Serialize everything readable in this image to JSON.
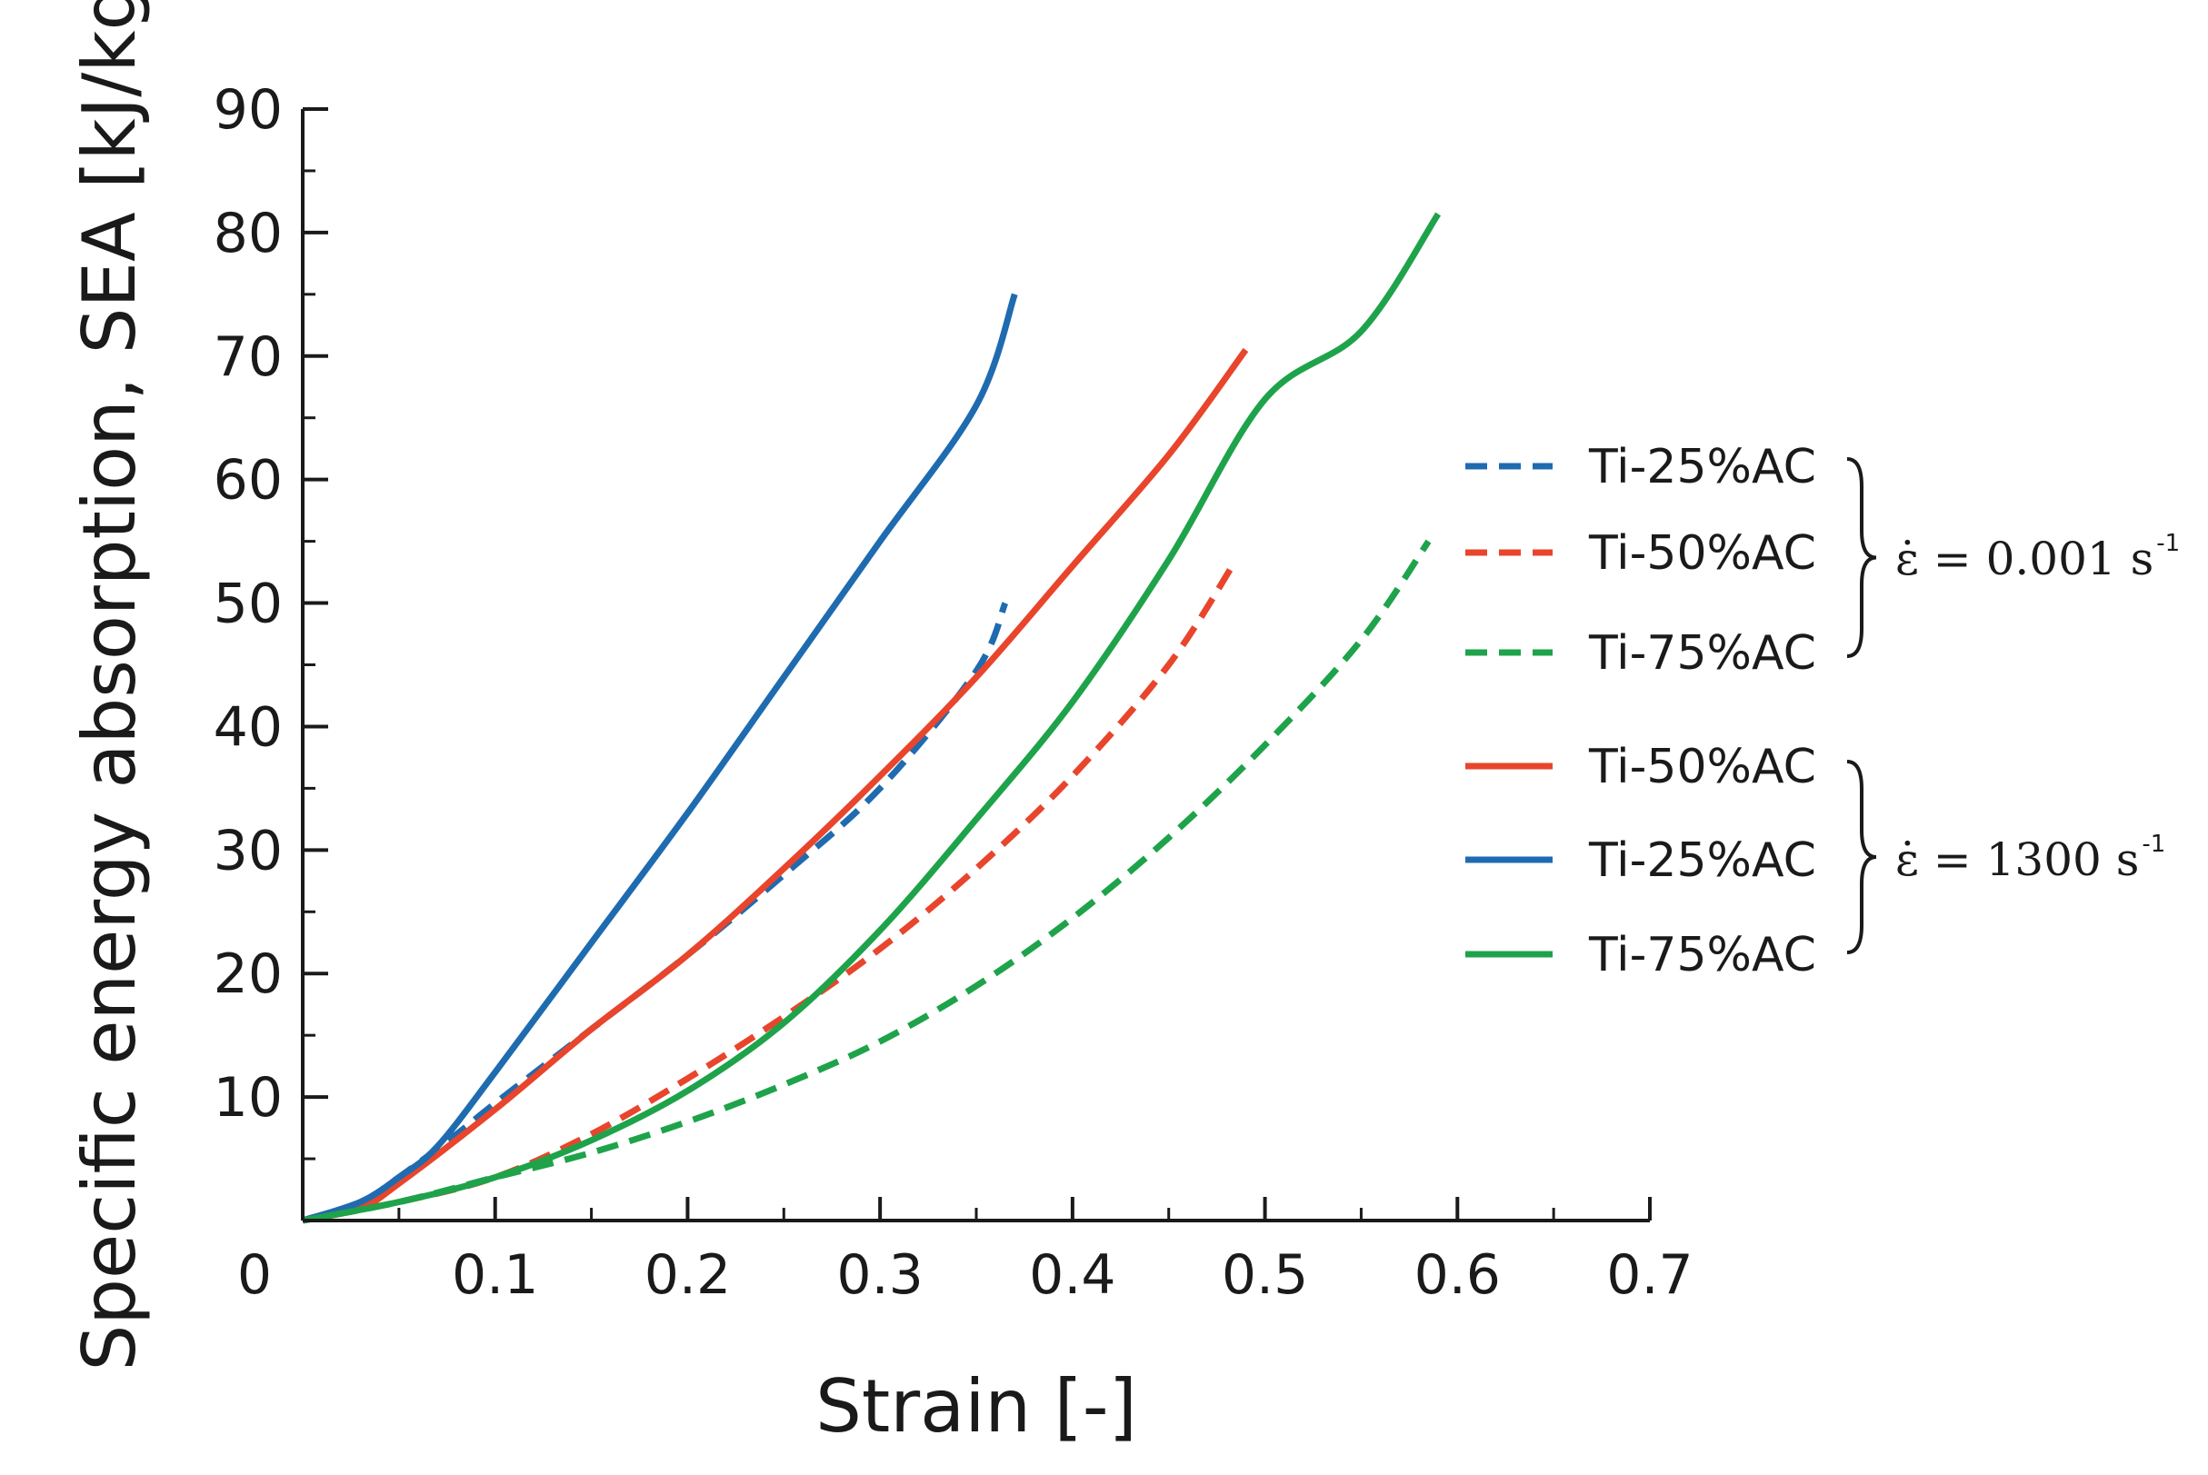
{
  "chart_data": {
    "type": "line",
    "title": "",
    "xlabel": "Strain [-]",
    "ylabel": "Specific energy absorption, SEA  [kJ/kg]",
    "xlim": [
      0,
      0.7
    ],
    "ylim": [
      0,
      90
    ],
    "x_ticks": [
      0,
      0.1,
      0.2,
      0.3,
      0.4,
      0.5,
      0.6,
      0.7
    ],
    "x_tick_labels": [
      "0",
      "0.1",
      "0.2",
      "0.3",
      "0.4",
      "0.5",
      "0.6",
      "0.7"
    ],
    "y_ticks": [
      10,
      20,
      30,
      40,
      50,
      60,
      70,
      80,
      90
    ],
    "y_tick_labels": [
      "10",
      "20",
      "30",
      "40",
      "50",
      "60",
      "70",
      "80",
      "90"
    ],
    "grid": false,
    "legend_position": "right",
    "series": [
      {
        "name": "Ti-25%AC",
        "group": 0,
        "style": "dashed",
        "color": "#1f6bb0",
        "x": [
          0,
          0.03,
          0.05,
          0.08,
          0.1,
          0.15,
          0.2,
          0.25,
          0.3,
          0.35,
          0.365
        ],
        "y": [
          0,
          1.5,
          3.5,
          7,
          9.5,
          15.5,
          21.5,
          28,
          35,
          44.5,
          50
        ]
      },
      {
        "name": "Ti-50%AC",
        "group": 0,
        "style": "dashed",
        "color": "#e8452c",
        "x": [
          0,
          0.05,
          0.1,
          0.15,
          0.2,
          0.25,
          0.3,
          0.35,
          0.4,
          0.45,
          0.485
        ],
        "y": [
          0,
          1.5,
          3.5,
          7,
          11.5,
          16.5,
          22,
          28.5,
          36,
          45,
          53.5
        ]
      },
      {
        "name": "Ti-75%AC",
        "group": 0,
        "style": "dashed",
        "color": "#1ea34a",
        "x": [
          0,
          0.05,
          0.1,
          0.15,
          0.2,
          0.25,
          0.3,
          0.35,
          0.4,
          0.45,
          0.5,
          0.55,
          0.585
        ],
        "y": [
          0,
          1.5,
          3.5,
          5.5,
          8,
          11,
          14.5,
          19,
          24.5,
          31,
          38.5,
          47,
          55
        ]
      },
      {
        "name": "Ti-50%AC",
        "group": 1,
        "style": "solid",
        "color": "#e8452c",
        "x": [
          0,
          0.03,
          0.05,
          0.1,
          0.15,
          0.2,
          0.25,
          0.3,
          0.35,
          0.4,
          0.45,
          0.49
        ],
        "y": [
          0,
          1,
          3,
          9,
          15.5,
          21.5,
          28.5,
          36,
          44,
          53,
          62,
          70.5
        ]
      },
      {
        "name": "Ti-25%AC",
        "group": 1,
        "style": "solid",
        "color": "#1f6bb0",
        "x": [
          0,
          0.03,
          0.05,
          0.07,
          0.1,
          0.15,
          0.2,
          0.25,
          0.3,
          0.35,
          0.37
        ],
        "y": [
          0,
          1.5,
          3.5,
          6,
          12,
          22.5,
          33,
          44,
          55,
          66,
          75
        ]
      },
      {
        "name": "Ti-75%AC",
        "group": 1,
        "style": "solid",
        "color": "#1ea34a",
        "x": [
          0,
          0.05,
          0.1,
          0.15,
          0.2,
          0.25,
          0.3,
          0.35,
          0.4,
          0.45,
          0.5,
          0.55,
          0.59
        ],
        "y": [
          0,
          1.5,
          3.5,
          6.5,
          10.5,
          16,
          23.5,
          32.5,
          42,
          53.5,
          66.5,
          72,
          81.5
        ]
      }
    ],
    "legend_groups": [
      {
        "rate_text": "ε̇ = 0.001 s",
        "rate_sup": "-1"
      },
      {
        "rate_text": "ε̇ = 1300 s",
        "rate_sup": "-1"
      }
    ]
  }
}
